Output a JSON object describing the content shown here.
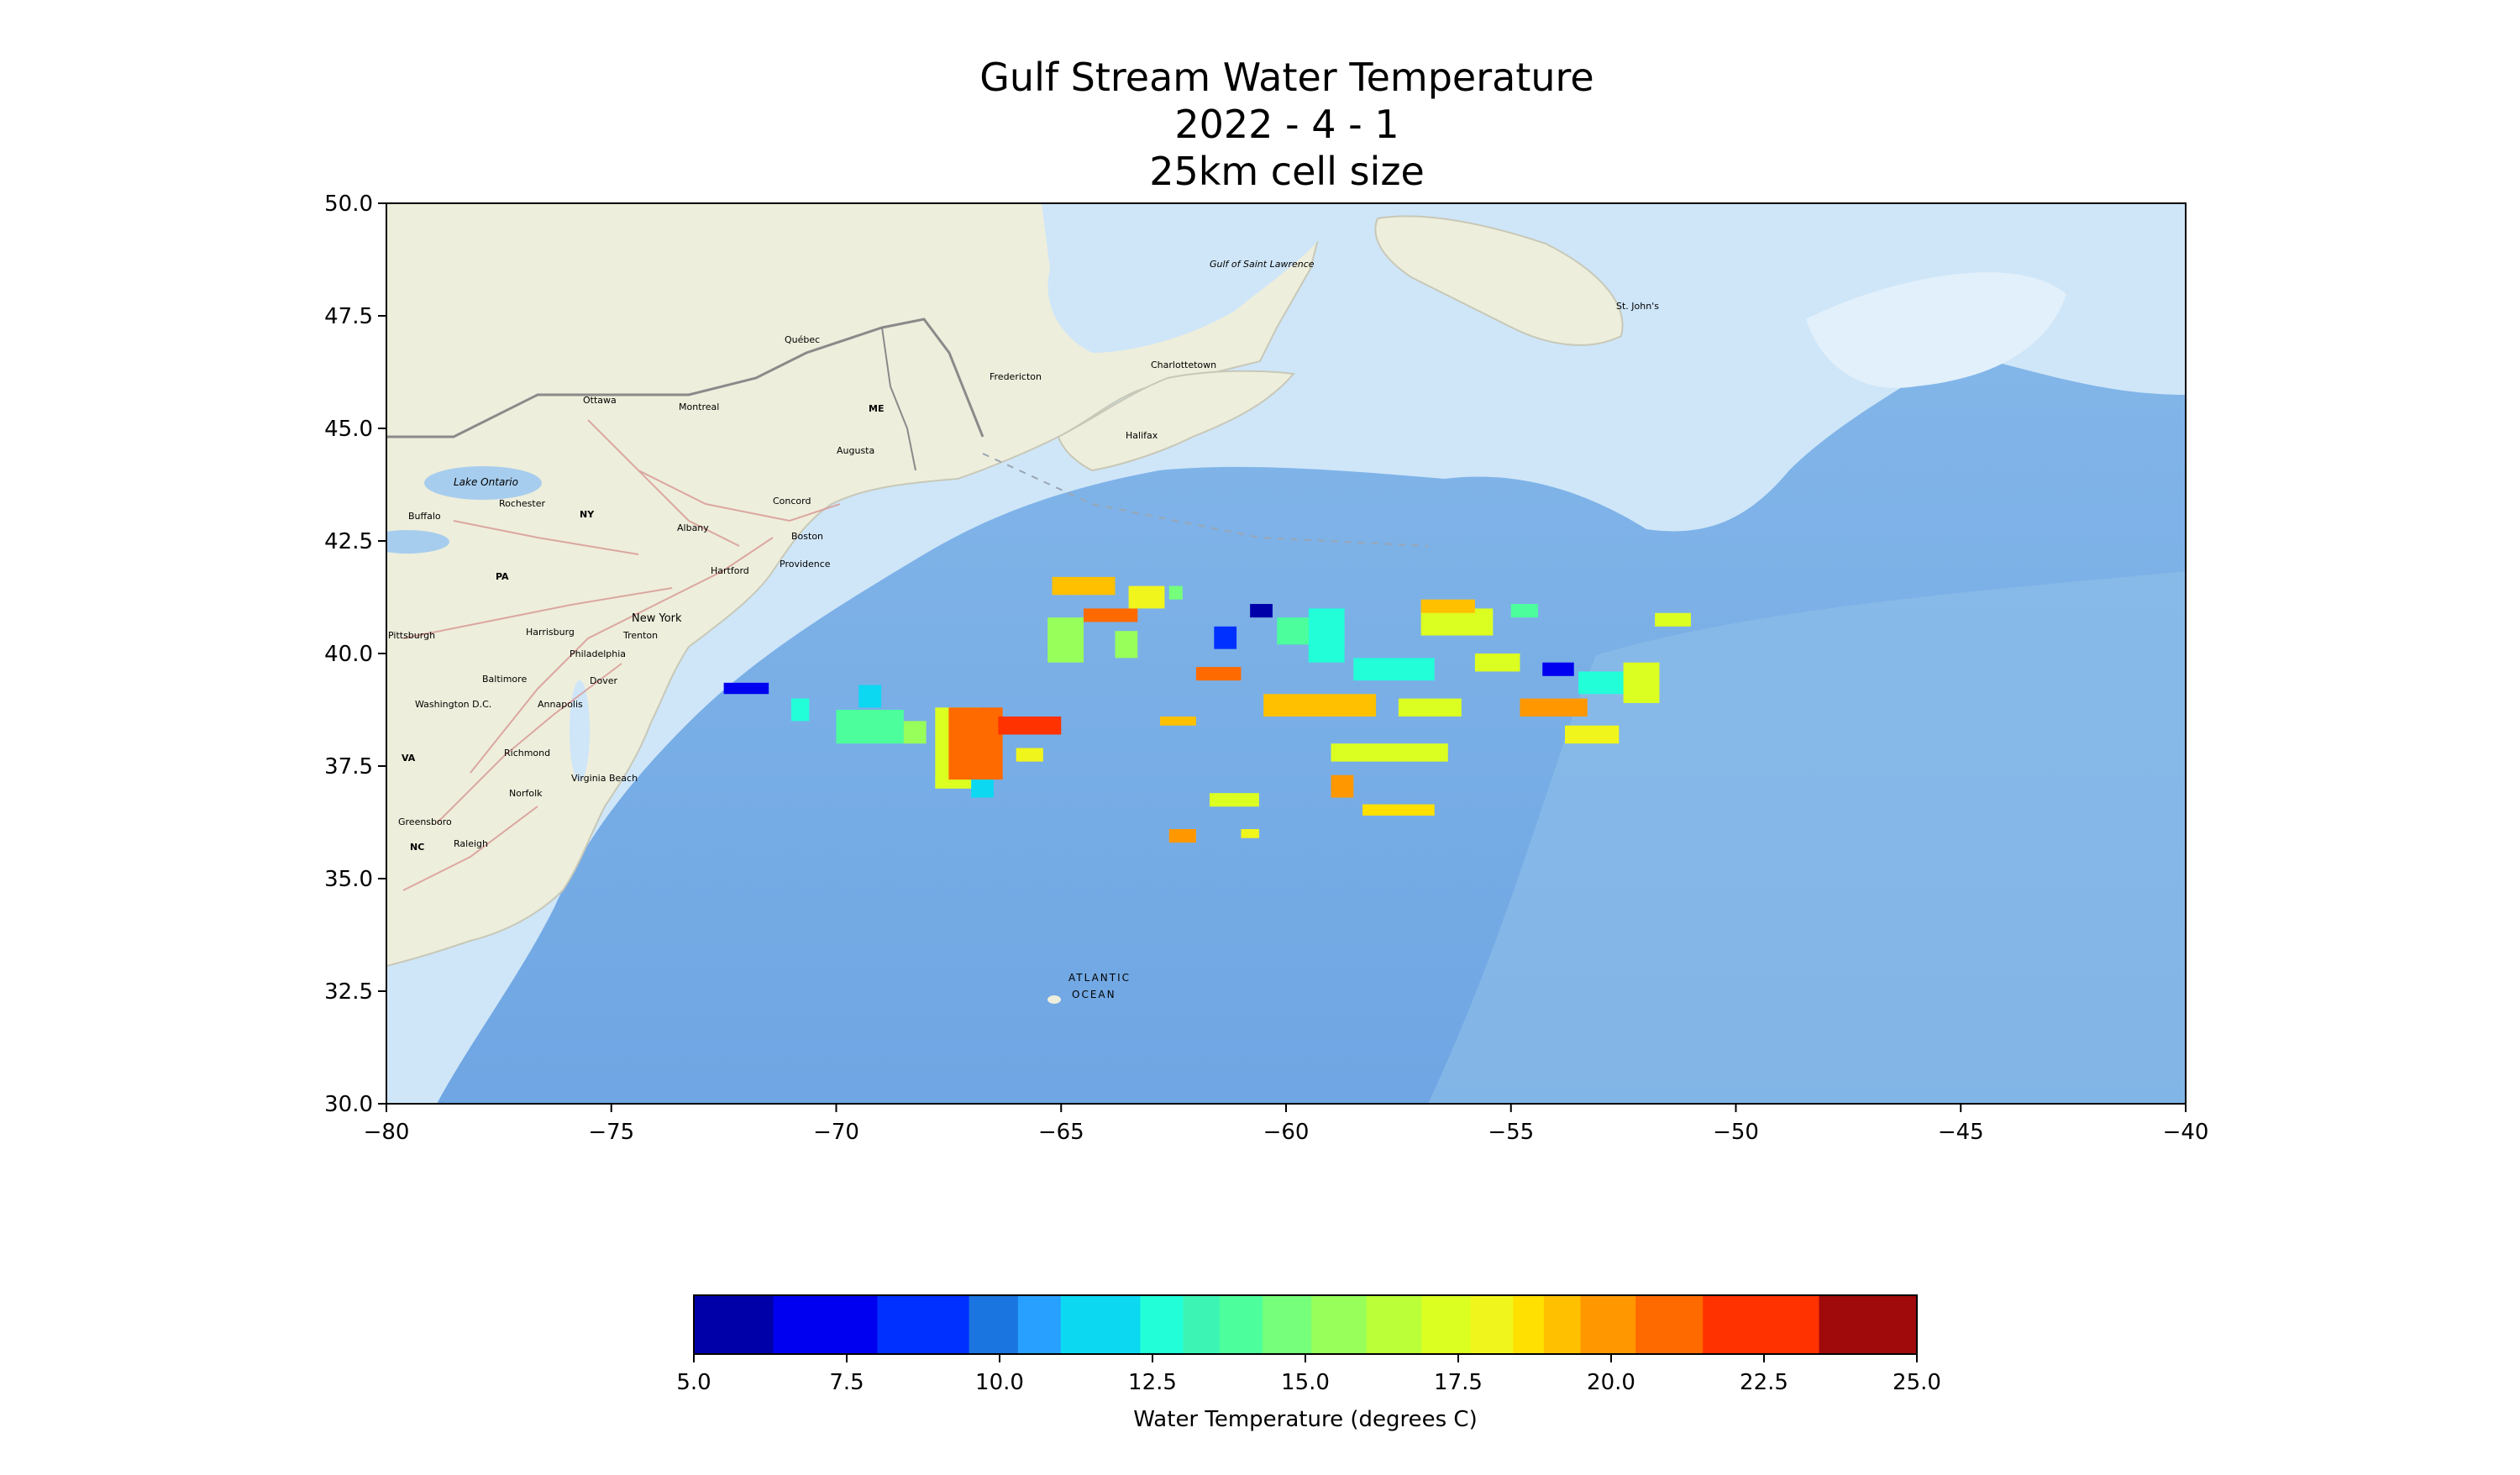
{
  "title_lines": [
    "Gulf Stream Water Temperature",
    "2022 - 4 - 1",
    "25km cell size"
  ],
  "map": {
    "lon_range": [
      -80,
      -40
    ],
    "lat_range": [
      30,
      50
    ],
    "x_ticks": [
      "−80",
      "−75",
      "−70",
      "−65",
      "−60",
      "−55",
      "−50",
      "−45",
      "−40"
    ],
    "y_ticks": [
      "30.0",
      "32.5",
      "35.0",
      "37.5",
      "40.0",
      "42.5",
      "45.0",
      "47.5",
      "50.0"
    ],
    "colors": {
      "land": "#eeeedc",
      "water_shelf": "#cfe6f8",
      "water_deep": "#7fb2e6",
      "water_basin": "#73aee8",
      "border": "#8a8a8a"
    },
    "place_labels": {
      "lake_ontario": "Lake Ontario",
      "gulf_st_lawrence": "Gulf of Saint Lawrence",
      "atlantic_1": "ATLANTIC",
      "atlantic_2": "OCEAN",
      "ottawa": "Ottawa",
      "montreal": "Montreal",
      "quebec": "Québec",
      "fredericton": "Fredericton",
      "charlottetown": "Charlottetown",
      "halifax": "Halifax",
      "st_johns": "St. John's",
      "augusta": "Augusta",
      "me": "ME",
      "concord": "Concord",
      "boston": "Boston",
      "providence": "Providence",
      "hartford": "Hartford",
      "albany": "Albany",
      "ny": "NY",
      "rochester": "Rochester",
      "buffalo": "Buffalo",
      "new_york": "New York",
      "trenton": "Trenton",
      "philadelphia": "Philadelphia",
      "harrisburg": "Harrisburg",
      "pa": "PA",
      "pittsburgh": "Pittsburgh",
      "baltimore": "Baltimore",
      "dover": "Dover",
      "washington": "Washington D.C.",
      "annapolis": "Annapolis",
      "richmond": "Richmond",
      "va": "VA",
      "virginia_beach": "Virginia Beach",
      "norfolk": "Norfolk",
      "greensboro": "Greensboro",
      "raleigh": "Raleigh",
      "nc": "NC"
    }
  },
  "temperature_cells": [
    {
      "lon": -72.5,
      "lat": 39.1,
      "w": 1.0,
      "h": 0.25,
      "t": 7.5
    },
    {
      "lon": -71.0,
      "lat": 38.5,
      "w": 0.4,
      "h": 0.5,
      "t": 13
    },
    {
      "lon": -70.0,
      "lat": 38.0,
      "w": 1.5,
      "h": 0.75,
      "t": 14
    },
    {
      "lon": -69.5,
      "lat": 38.8,
      "w": 0.5,
      "h": 0.5,
      "t": 12
    },
    {
      "lon": -68.5,
      "lat": 38.0,
      "w": 0.5,
      "h": 0.5,
      "t": 16
    },
    {
      "lon": -67.8,
      "lat": 37.0,
      "w": 1.0,
      "h": 1.8,
      "t": 17.5
    },
    {
      "lon": -67.0,
      "lat": 36.8,
      "w": 0.5,
      "h": 0.5,
      "t": 12
    },
    {
      "lon": -67.5,
      "lat": 37.2,
      "w": 1.2,
      "h": 1.6,
      "t": 21
    },
    {
      "lon": -66.4,
      "lat": 38.2,
      "w": 1.4,
      "h": 0.4,
      "t": 22
    },
    {
      "lon": -66.0,
      "lat": 37.6,
      "w": 0.6,
      "h": 0.3,
      "t": 18
    },
    {
      "lon": -65.3,
      "lat": 39.8,
      "w": 0.8,
      "h": 1.0,
      "t": 16
    },
    {
      "lon": -65.2,
      "lat": 41.3,
      "w": 1.4,
      "h": 0.4,
      "t": 19
    },
    {
      "lon": -64.5,
      "lat": 40.7,
      "w": 1.2,
      "h": 0.3,
      "t": 21
    },
    {
      "lon": -63.8,
      "lat": 39.9,
      "w": 0.5,
      "h": 0.6,
      "t": 16
    },
    {
      "lon": -63.5,
      "lat": 41.0,
      "w": 0.8,
      "h": 0.5,
      "t": 18
    },
    {
      "lon": -62.6,
      "lat": 41.2,
      "w": 0.3,
      "h": 0.3,
      "t": 15
    },
    {
      "lon": -62.8,
      "lat": 38.4,
      "w": 0.8,
      "h": 0.2,
      "t": 19
    },
    {
      "lon": -62.0,
      "lat": 39.4,
      "w": 1.0,
      "h": 0.3,
      "t": 21
    },
    {
      "lon": -61.6,
      "lat": 40.1,
      "w": 0.5,
      "h": 0.5,
      "t": 9
    },
    {
      "lon": -60.8,
      "lat": 40.8,
      "w": 0.5,
      "h": 0.3,
      "t": 6
    },
    {
      "lon": -60.2,
      "lat": 40.2,
      "w": 1.4,
      "h": 0.6,
      "t": 14
    },
    {
      "lon": -59.5,
      "lat": 39.8,
      "w": 0.8,
      "h": 1.2,
      "t": 12.5
    },
    {
      "lon": -58.5,
      "lat": 39.4,
      "w": 1.8,
      "h": 0.5,
      "t": 13
    },
    {
      "lon": -60.5,
      "lat": 38.6,
      "w": 2.5,
      "h": 0.5,
      "t": 19
    },
    {
      "lon": -59.0,
      "lat": 37.6,
      "w": 2.6,
      "h": 0.4,
      "t": 17.5
    },
    {
      "lon": -57.5,
      "lat": 38.6,
      "w": 1.4,
      "h": 0.4,
      "t": 17
    },
    {
      "lon": -58.3,
      "lat": 36.4,
      "w": 1.6,
      "h": 0.25,
      "t": 18.5
    },
    {
      "lon": -59.0,
      "lat": 36.8,
      "w": 0.5,
      "h": 0.5,
      "t": 20
    },
    {
      "lon": -61.7,
      "lat": 36.6,
      "w": 1.1,
      "h": 0.3,
      "t": 17.5
    },
    {
      "lon": -62.6,
      "lat": 35.8,
      "w": 0.6,
      "h": 0.3,
      "t": 20
    },
    {
      "lon": -61.0,
      "lat": 35.9,
      "w": 0.4,
      "h": 0.2,
      "t": 18
    },
    {
      "lon": -57.0,
      "lat": 40.4,
      "w": 1.6,
      "h": 0.6,
      "t": 17.5
    },
    {
      "lon": -57.0,
      "lat": 40.9,
      "w": 1.2,
      "h": 0.3,
      "t": 19
    },
    {
      "lon": -55.8,
      "lat": 39.6,
      "w": 1.0,
      "h": 0.4,
      "t": 17.5
    },
    {
      "lon": -55.0,
      "lat": 40.8,
      "w": 0.6,
      "h": 0.3,
      "t": 14
    },
    {
      "lon": -54.3,
      "lat": 39.5,
      "w": 0.7,
      "h": 0.3,
      "t": 7
    },
    {
      "lon": -53.5,
      "lat": 39.1,
      "w": 1.3,
      "h": 0.5,
      "t": 13
    },
    {
      "lon": -52.5,
      "lat": 38.9,
      "w": 0.8,
      "h": 0.9,
      "t": 17.5
    },
    {
      "lon": -54.8,
      "lat": 38.6,
      "w": 1.5,
      "h": 0.4,
      "t": 20
    },
    {
      "lon": -53.8,
      "lat": 38.0,
      "w": 1.2,
      "h": 0.4,
      "t": 18
    },
    {
      "lon": -51.8,
      "lat": 40.6,
      "w": 0.8,
      "h": 0.3,
      "t": 17.5
    }
  ],
  "colorbar": {
    "label": "Water Temperature (degrees C)",
    "min": 5,
    "max": 25,
    "tick_labels": [
      "5.0",
      "7.5",
      "10.0",
      "12.5",
      "15.0",
      "17.5",
      "20.0",
      "22.5",
      "25.0"
    ],
    "segments": [
      {
        "from": 5.0,
        "to": 6.3,
        "color": "#0000a8"
      },
      {
        "from": 6.3,
        "to": 8.0,
        "color": "#0000f0"
      },
      {
        "from": 8.0,
        "to": 9.5,
        "color": "#0030ff"
      },
      {
        "from": 9.5,
        "to": 10.3,
        "color": "#1a75e0"
      },
      {
        "from": 10.3,
        "to": 11.0,
        "color": "#28a0ff"
      },
      {
        "from": 11.0,
        "to": 12.3,
        "color": "#0cd8f2"
      },
      {
        "from": 12.3,
        "to": 13.0,
        "color": "#22ffd8"
      },
      {
        "from": 13.0,
        "to": 13.6,
        "color": "#3cf5b4"
      },
      {
        "from": 13.6,
        "to": 14.3,
        "color": "#4cff9c"
      },
      {
        "from": 14.3,
        "to": 15.1,
        "color": "#75ff7a"
      },
      {
        "from": 15.1,
        "to": 16.0,
        "color": "#98ff5a"
      },
      {
        "from": 16.0,
        "to": 16.9,
        "color": "#baff38"
      },
      {
        "from": 16.9,
        "to": 17.7,
        "color": "#dcff22"
      },
      {
        "from": 17.7,
        "to": 18.4,
        "color": "#f0f51c"
      },
      {
        "from": 18.4,
        "to": 18.9,
        "color": "#ffe000"
      },
      {
        "from": 18.9,
        "to": 19.5,
        "color": "#ffc000"
      },
      {
        "from": 19.5,
        "to": 20.4,
        "color": "#ff9800"
      },
      {
        "from": 20.4,
        "to": 21.5,
        "color": "#ff6a00"
      },
      {
        "from": 21.5,
        "to": 23.4,
        "color": "#ff3200"
      },
      {
        "from": 23.4,
        "to": 25.0,
        "color": "#a00a0a"
      }
    ]
  }
}
